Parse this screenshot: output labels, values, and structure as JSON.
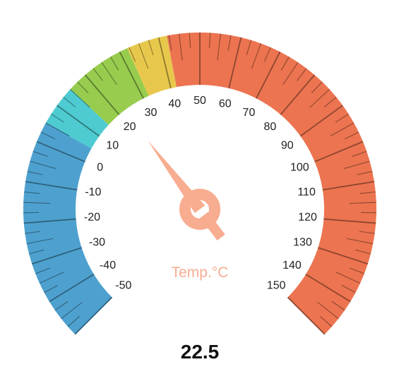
{
  "chart_data": {
    "type": "gauge",
    "min": -50,
    "max": 150,
    "value": 22.5,
    "value_label": "22.5",
    "unit_label": "Temp.°C",
    "major_ticks": [
      -50,
      -40,
      -30,
      -20,
      -10,
      0,
      10,
      20,
      30,
      40,
      50,
      60,
      70,
      80,
      90,
      100,
      110,
      120,
      130,
      140,
      150
    ],
    "tick_labels": [
      "-50",
      "-40",
      "-30",
      "-20",
      "-10",
      "0",
      "10",
      "20",
      "30",
      "40",
      "50",
      "60",
      "70",
      "80",
      "90",
      "100",
      "110",
      "120",
      "130",
      "140",
      "150"
    ],
    "bands": [
      {
        "from": -50,
        "to": 5,
        "color": "#4ea1cf"
      },
      {
        "from": 5,
        "to": 15,
        "color": "#4ecbd1"
      },
      {
        "from": 15,
        "to": 32,
        "color": "#98cc4e"
      },
      {
        "from": 32,
        "to": 42,
        "color": "#e8c84c"
      },
      {
        "from": 42,
        "to": 150,
        "color": "#ec7450"
      }
    ],
    "pointer_color": "#f8ac90",
    "unit_label_color": "#f8ac90"
  }
}
